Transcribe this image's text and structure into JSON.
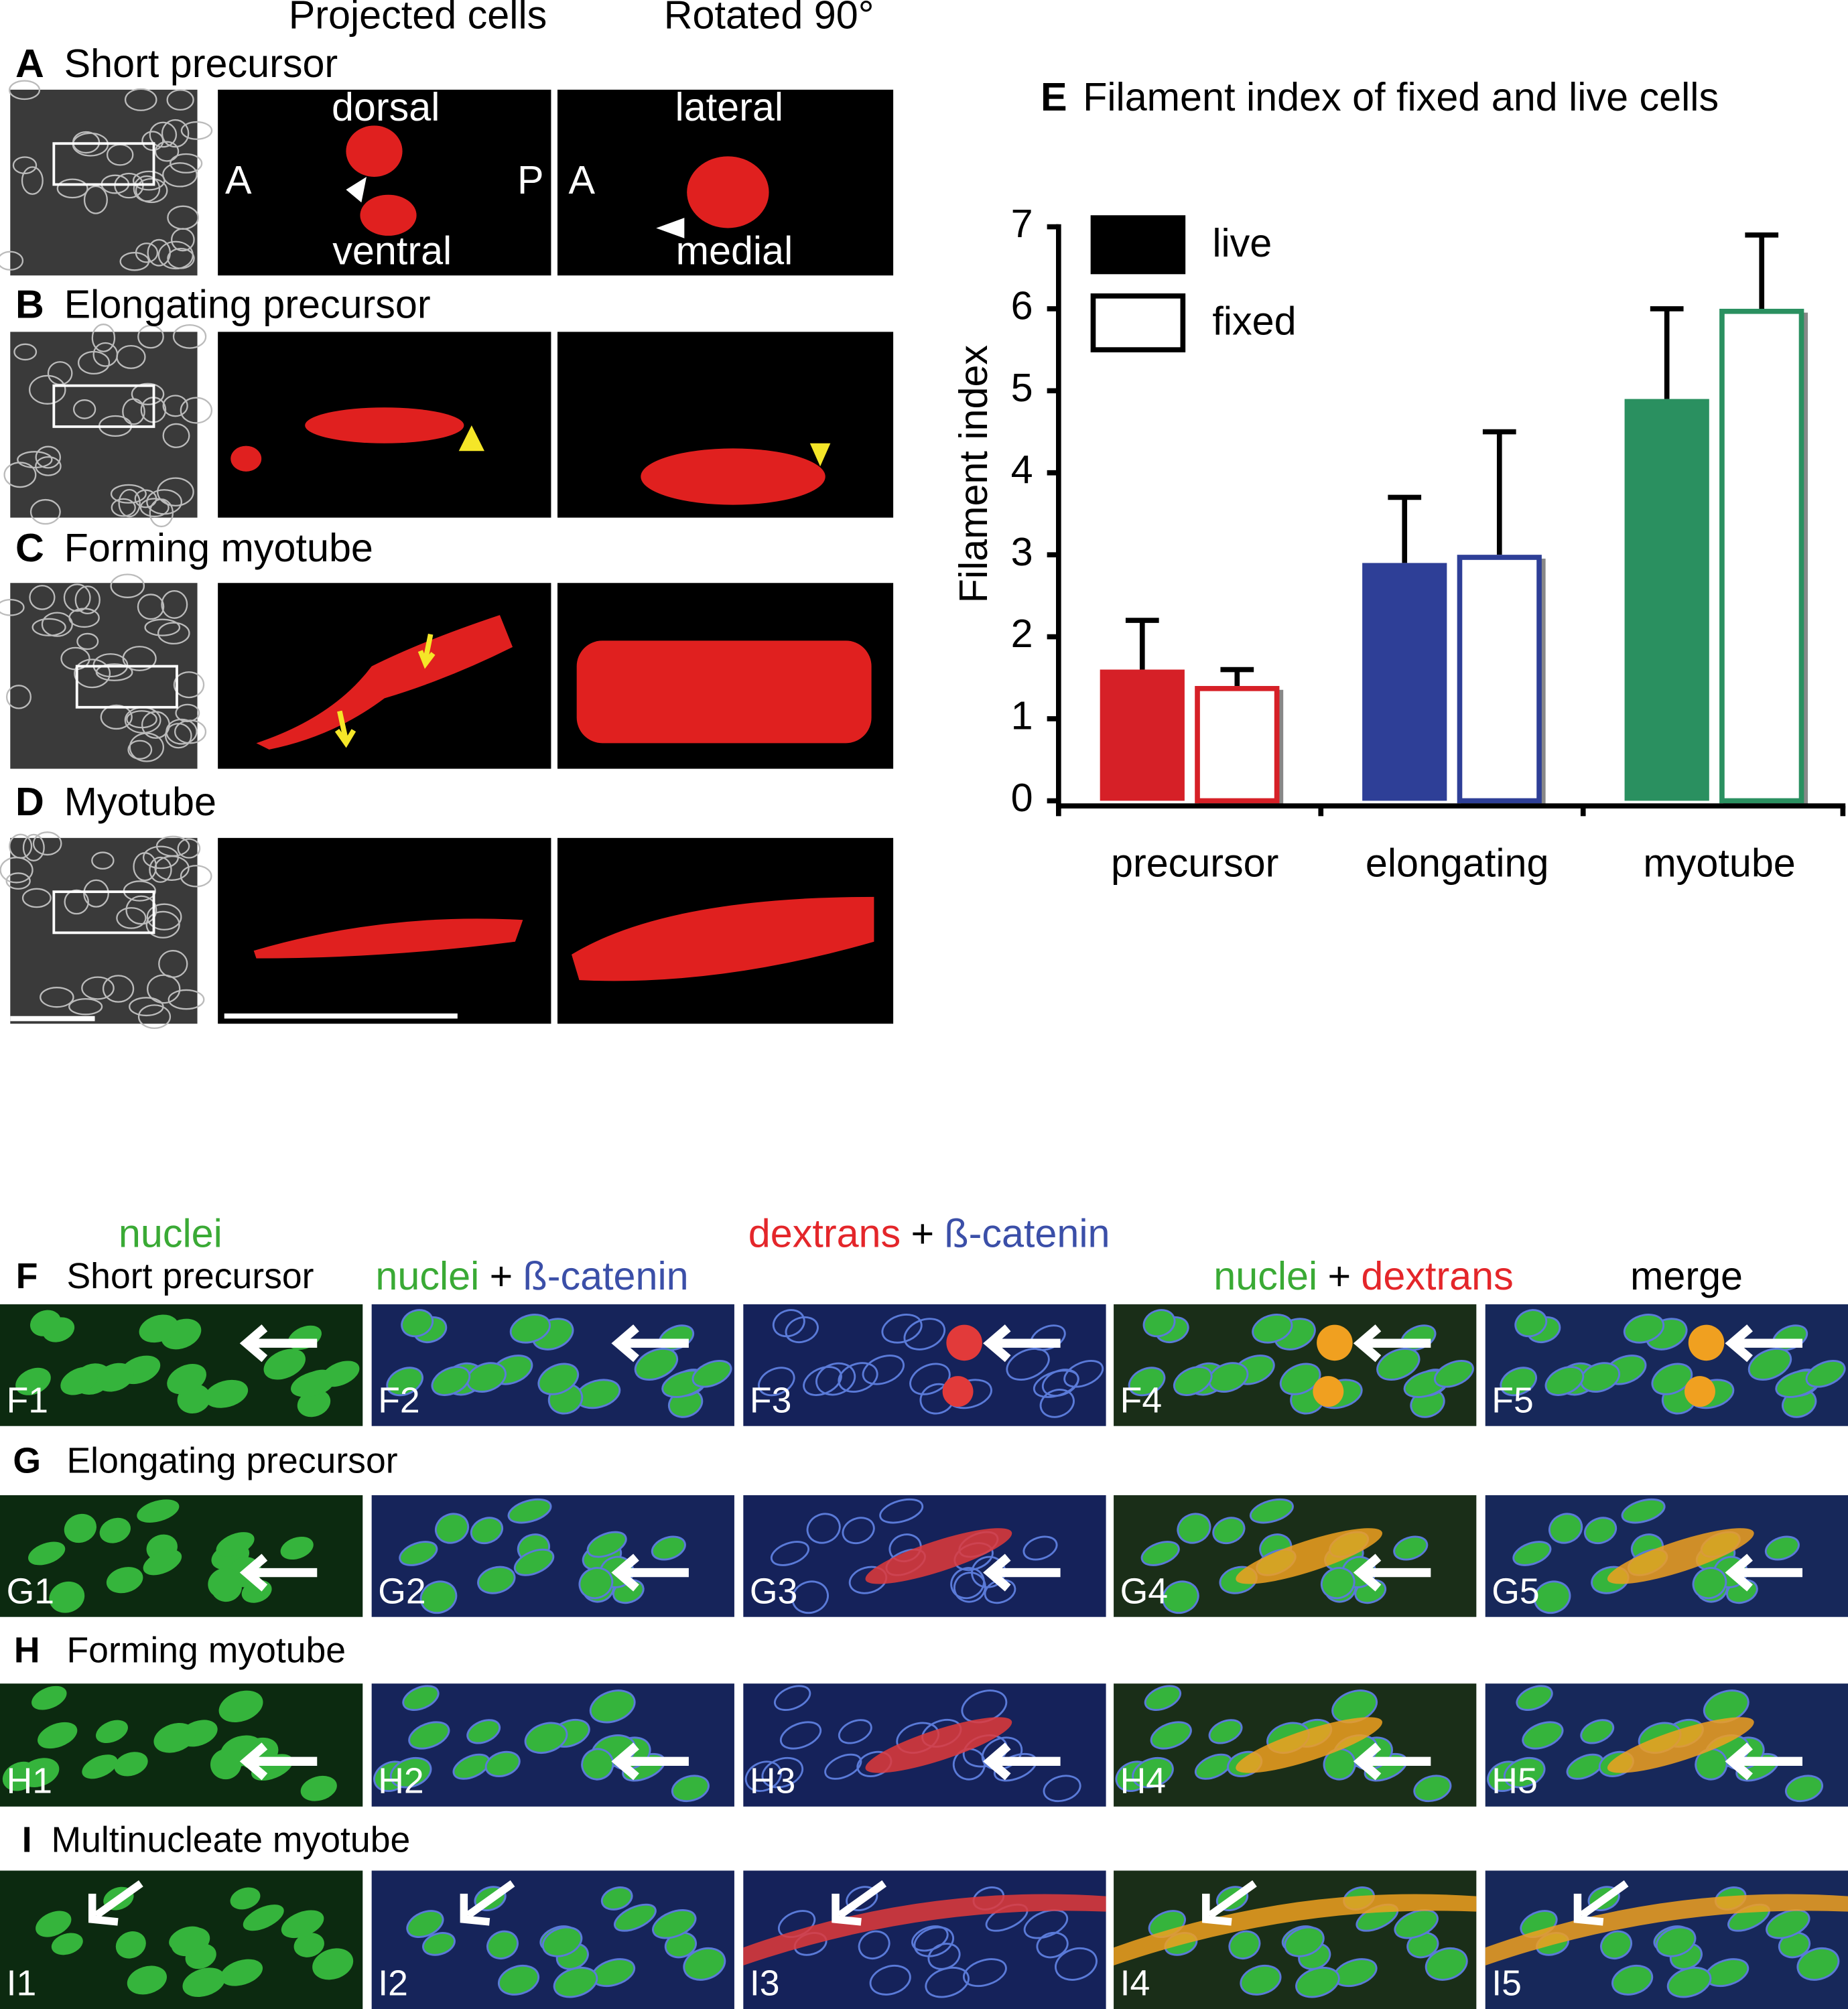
{
  "chart_data": {
    "type": "bar",
    "panel": "E",
    "title": "Filament index of fixed and live cells",
    "y_label": "Filament index",
    "categories": [
      "precursor",
      "elongating",
      "myotube"
    ],
    "category_colors": [
      "#d62027",
      "#2e3f97",
      "#2a9060"
    ],
    "series": [
      {
        "name": "live",
        "color": "#000000",
        "values": [
          1.6,
          2.9,
          4.9
        ],
        "errors": [
          0.6,
          0.8,
          1.1
        ]
      },
      {
        "name": "fixed",
        "color": "#ffffff",
        "values": [
          1.4,
          3.0,
          6.0
        ],
        "errors": [
          0.2,
          1.5,
          0.9
        ]
      }
    ],
    "ylim": [
      0,
      7
    ],
    "yticks": [
      0,
      1,
      2,
      3,
      4,
      5,
      6,
      7
    ],
    "grid": false,
    "legend": "top-left"
  },
  "figure": {
    "column_headers": [
      "Projected cells",
      "Rotated 90°"
    ],
    "top_rows": [
      {
        "letter": "A",
        "title": "Short precursor"
      },
      {
        "letter": "B",
        "title": "Elongating precursor"
      },
      {
        "letter": "C",
        "title": "Forming myotube"
      },
      {
        "letter": "D",
        "title": "Myotube"
      }
    ],
    "image_labels": [
      "dorsal",
      "ventral",
      "A",
      "P",
      "A",
      "lateral",
      "medial"
    ],
    "bottom_headers": [
      {
        "parts": [
          {
            "text": "nuclei",
            "color": "#3aaa35"
          }
        ]
      },
      {
        "parts": [
          {
            "text": "nuclei",
            "color": "#3aaa35"
          },
          {
            "text": "+",
            "color": "#000000"
          },
          {
            "text": "ß-catenin",
            "color": "#3b4fa8"
          }
        ]
      },
      {
        "parts": [
          {
            "text": "dextrans",
            "color": "#e4262a"
          },
          {
            "text": "+",
            "color": "#000000"
          },
          {
            "text": "ß-catenin",
            "color": "#3b4fa8"
          }
        ]
      },
      {
        "parts": [
          {
            "text": "nuclei",
            "color": "#3aaa35"
          },
          {
            "text": "+",
            "color": "#000000"
          },
          {
            "text": "dextrans",
            "color": "#e4262a"
          }
        ]
      },
      {
        "parts": [
          {
            "text": "merge",
            "color": "#000000"
          }
        ]
      }
    ],
    "bottom_rows": [
      {
        "letter": "F",
        "title": "Short precursor",
        "cells": [
          "F1",
          "F2",
          "F3",
          "F4",
          "F5"
        ]
      },
      {
        "letter": "G",
        "title": "Elongating precursor",
        "cells": [
          "G1",
          "G2",
          "G3",
          "G4",
          "G5"
        ]
      },
      {
        "letter": "H",
        "title": "Forming myotube",
        "cells": [
          "H1",
          "H2",
          "H3",
          "H4",
          "H5"
        ]
      },
      {
        "letter": "I",
        "title": "Multinucleate myotube",
        "cells": [
          "I1",
          "I2",
          "I3",
          "I4",
          "I5"
        ]
      }
    ]
  }
}
